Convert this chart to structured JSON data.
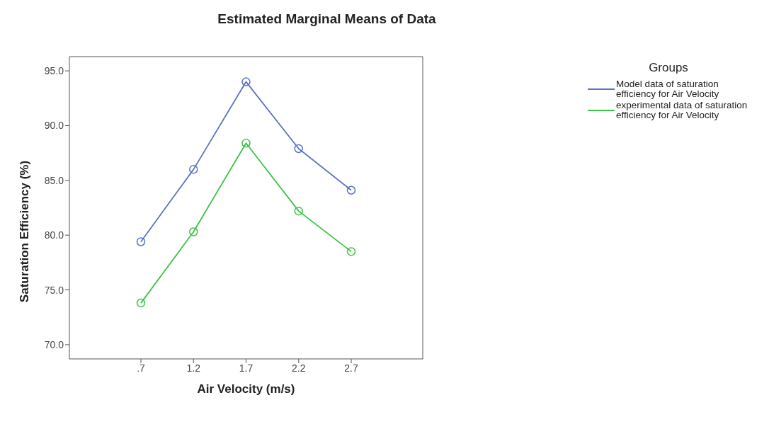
{
  "chart_data": {
    "type": "line",
    "title": "Estimated Marginal Means of Data",
    "xlabel": "Air Velocity (m/s)",
    "ylabel": "Saturation Efficiency (%)",
    "legend_title": "Groups",
    "categories": [
      ".7",
      "1.2",
      "1.7",
      "2.2",
      "2.7"
    ],
    "series": [
      {
        "name": "Model data of saturation efficiency for Air Velocity",
        "color": "#5a72c8",
        "values": [
          79.4,
          86.0,
          94.0,
          87.9,
          84.1
        ]
      },
      {
        "name": "experimental data of saturation efficiency for Air Velocity",
        "color": "#3cc247",
        "values": [
          73.8,
          80.3,
          88.4,
          82.2,
          78.5
        ]
      }
    ],
    "ylim": [
      68.7,
      96.3
    ],
    "yticks": [
      {
        "value": 70,
        "label": "70.0"
      },
      {
        "value": 75,
        "label": "75.0"
      },
      {
        "value": 80,
        "label": "80.0"
      },
      {
        "value": 85,
        "label": "85.0"
      },
      {
        "value": 90,
        "label": "90.0"
      },
      {
        "value": 95,
        "label": "95.0"
      }
    ],
    "grid": false,
    "legend": "right",
    "marker": "circle",
    "line_style": "solid"
  }
}
